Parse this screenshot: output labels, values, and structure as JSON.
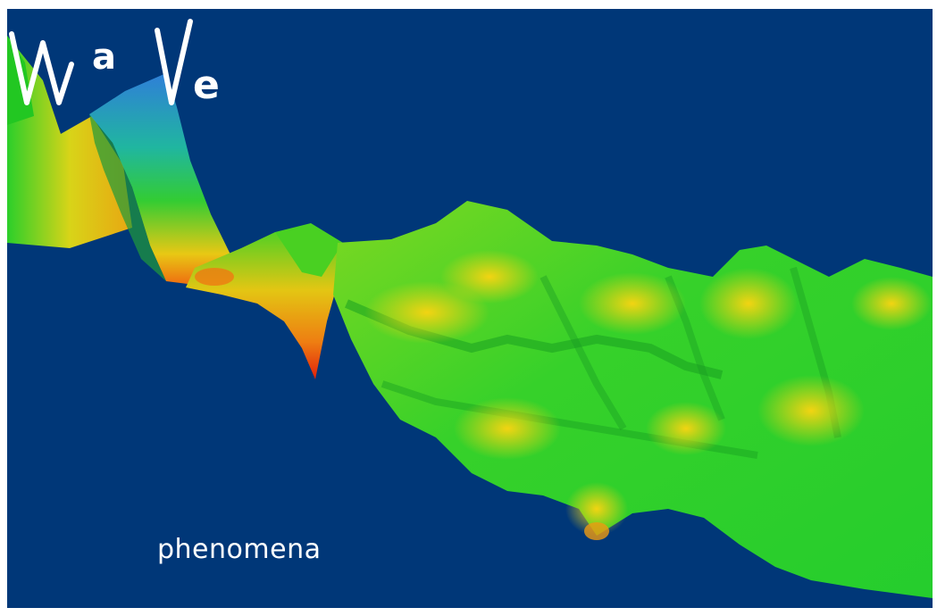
{
  "logo": {
    "wordmark": "WaVe",
    "subtitle": "phenomena"
  },
  "colors": {
    "background": "#003778",
    "wave_green": "#22d12c",
    "wave_yellow": "#e6e112",
    "wave_orange": "#ef8a12",
    "wave_red": "#e3210d",
    "wave_blue": "#2f7fd8",
    "logo_text": "#ffffff"
  }
}
